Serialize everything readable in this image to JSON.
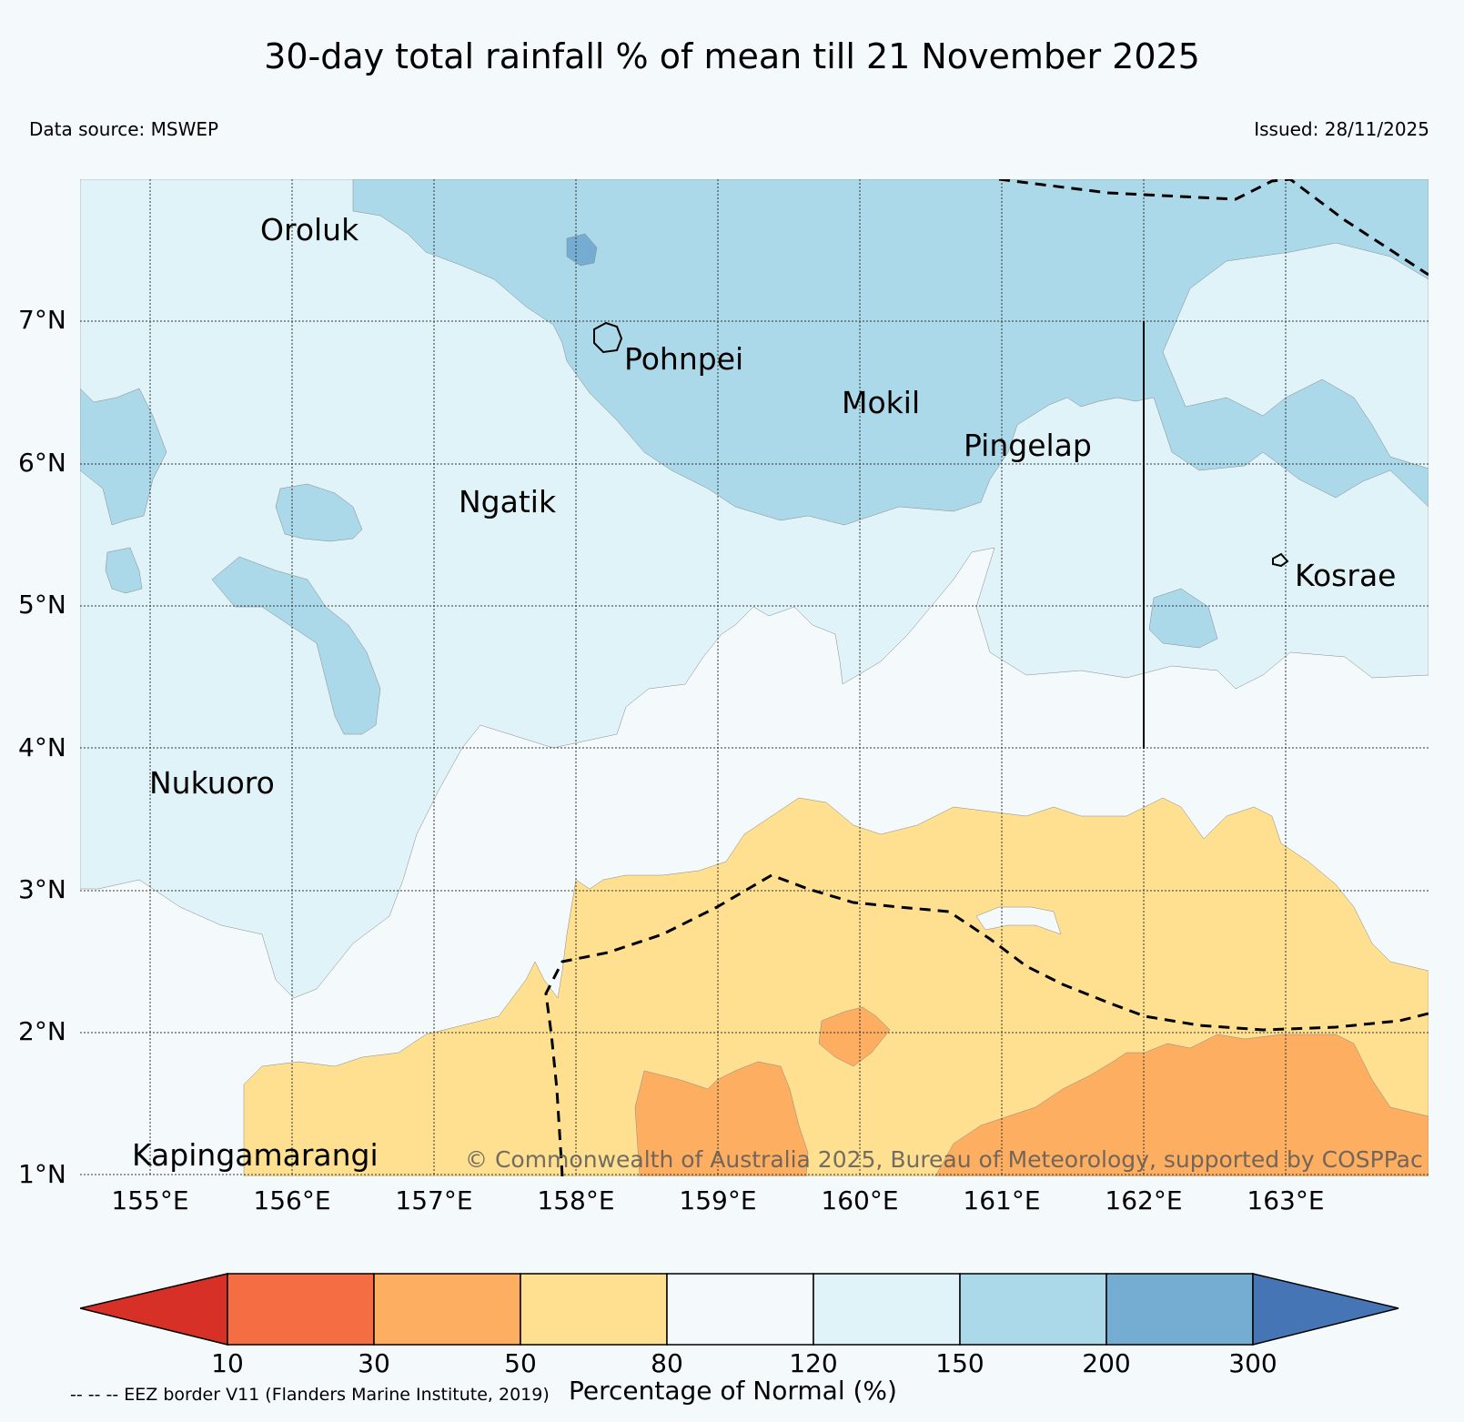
{
  "title": "30-day total rainfall % of mean till 21 November 2025",
  "data_source": "Data source: MSWEP",
  "issued": "Issued: 28/11/2025",
  "lat_labels": [
    "7°N",
    "6°N",
    "5°N",
    "4°N",
    "3°N",
    "2°N",
    "1°N"
  ],
  "lon_labels": [
    "155°E",
    "156°E",
    "157°E",
    "158°E",
    "159°E",
    "160°E",
    "161°E",
    "162°E",
    "163°E"
  ],
  "islands": {
    "oroluk": "Oroluk",
    "pohnpei": "Pohnpei",
    "mokil": "Mokil",
    "pingelap": "Pingelap",
    "ngatik": "Ngatik",
    "kosrae": "Kosrae",
    "nukuoro": "Nukuoro",
    "kapingamarangi": "Kapingamarangi"
  },
  "copyright": "© Commonwealth of Australia 2025, Bureau of Meteorology, supported by COSPPac",
  "colorbar": {
    "ticks": [
      "10",
      "30",
      "50",
      "80",
      "120",
      "150",
      "200",
      "300"
    ],
    "label": "Percentage of Normal (%)",
    "colors": {
      "lt10": "#d73027",
      "10_30": "#f46d43",
      "30_50": "#fdae61",
      "50_80": "#fee090",
      "80_120": "#f4f9fc",
      "120_150": "#e0f3f8",
      "150_200": "#abd9e9",
      "200_300": "#74add1",
      "gt300": "#4575b4"
    }
  },
  "eez_note": "-- -- -- EEZ border V11 (Flanders Marine Institute, 2019)"
}
